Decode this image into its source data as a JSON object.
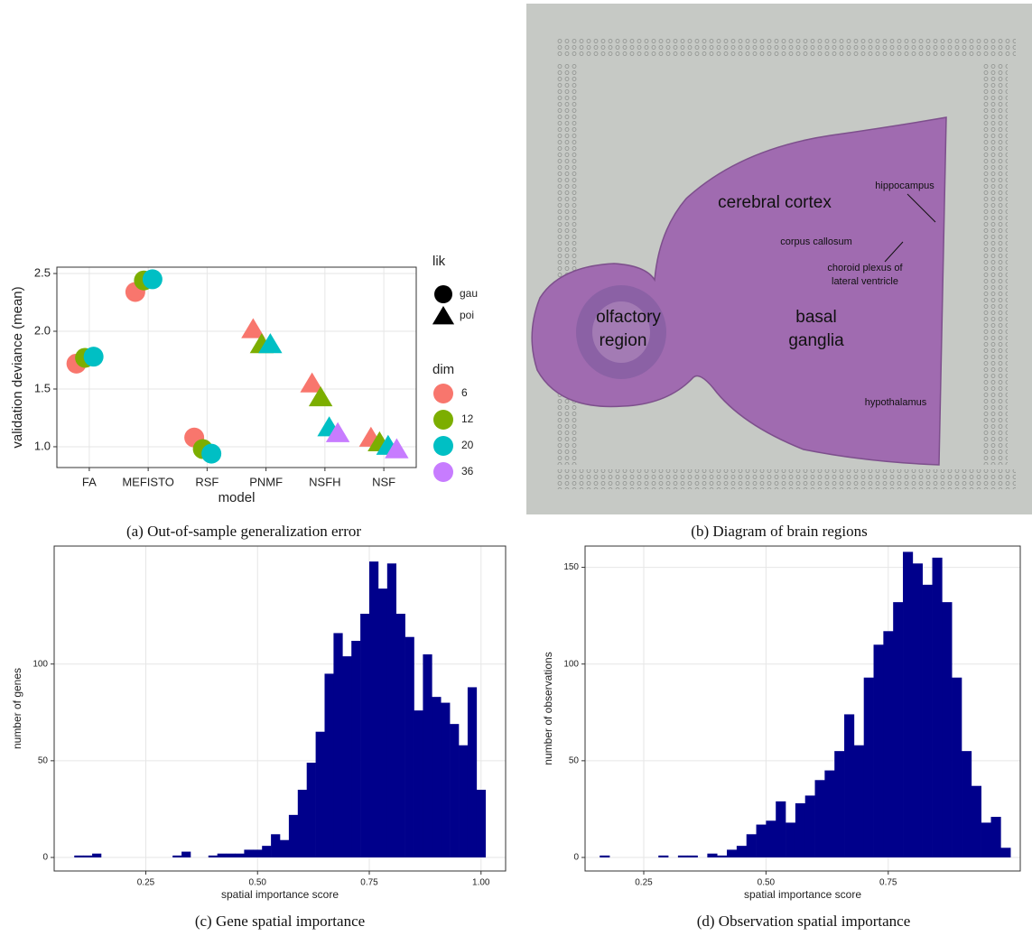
{
  "chart_data": [
    {
      "type": "scatter",
      "caption": "(a) Out-of-sample generalization error",
      "categories": [
        "FA",
        "MEFISTO",
        "RSF",
        "PNMF",
        "NSFH",
        "NSF"
      ],
      "xlabel": "model",
      "ylabel": "validation deviance (mean)",
      "ylim": [
        0.82,
        2.555
      ],
      "yticks": [
        {
          "value": 1,
          "label": "1.0"
        },
        {
          "value": 1.5,
          "label": "1.5"
        },
        {
          "value": 2,
          "label": "2.0"
        },
        {
          "value": 2.5,
          "label": "2.5"
        }
      ],
      "grid": true,
      "legend_shape": {
        "title": "lik",
        "entries": [
          {
            "label": "gau",
            "shape": "circle"
          },
          {
            "label": "poi",
            "shape": "triangle"
          }
        ]
      },
      "legend_color": {
        "title": "dim",
        "entries": [
          {
            "label": "6",
            "color": "#F8766D"
          },
          {
            "label": "12",
            "color": "#7CAE00"
          },
          {
            "label": "20",
            "color": "#00BFC4"
          },
          {
            "label": "36",
            "color": "#C77CFF"
          }
        ]
      },
      "series": [
        {
          "shape": "circle",
          "color": "#F8766D",
          "values": [
            1.72,
            2.34,
            1.08,
            null,
            null,
            null
          ]
        },
        {
          "shape": "circle",
          "color": "#7CAE00",
          "values": [
            1.77,
            2.44,
            0.98,
            null,
            null,
            null
          ]
        },
        {
          "shape": "circle",
          "color": "#00BFC4",
          "values": [
            1.78,
            2.45,
            0.94,
            null,
            null,
            null
          ]
        },
        {
          "shape": "triangle",
          "color": "#F8766D",
          "values": [
            null,
            null,
            null,
            2.02,
            1.55,
            1.08
          ]
        },
        {
          "shape": "triangle",
          "color": "#7CAE00",
          "values": [
            null,
            null,
            null,
            1.89,
            1.43,
            1.04
          ]
        },
        {
          "shape": "triangle",
          "color": "#00BFC4",
          "values": [
            null,
            null,
            null,
            1.89,
            1.17,
            1.01
          ]
        },
        {
          "shape": "triangle",
          "color": "#C77CFF",
          "values": [
            null,
            null,
            null,
            null,
            1.12,
            0.98
          ]
        }
      ]
    },
    {
      "type": "image",
      "caption": "(b) Diagram of brain regions",
      "annotations": [
        "cerebral cortex",
        "hippocampus",
        "corpus callosum",
        "choroid plexus of",
        "lateral ventricle",
        "olfactory",
        "region",
        "basal",
        "ganglia",
        "hypothalamus"
      ]
    },
    {
      "type": "histogram",
      "caption": "(c) Gene spatial importance",
      "xlabel": "spatial importance score",
      "ylabel": "number of genes",
      "color": "#00008B",
      "bins": [
        0.09,
        0.11,
        0.13,
        0.15,
        0.17,
        0.19,
        0.21,
        0.23,
        0.25,
        0.27,
        0.29,
        0.31,
        0.33,
        0.35,
        0.37,
        0.39,
        0.41,
        0.43,
        0.45,
        0.47,
        0.49,
        0.51,
        0.53,
        0.55,
        0.57,
        0.59,
        0.61,
        0.63,
        0.65,
        0.67,
        0.69,
        0.71,
        0.73,
        0.75,
        0.77,
        0.79,
        0.81,
        0.83,
        0.85,
        0.87,
        0.89,
        0.91,
        0.93,
        0.95,
        0.97,
        0.99,
        1.01
      ],
      "values": [
        1,
        1,
        2,
        0,
        0,
        0,
        0,
        0,
        0,
        0,
        0,
        1,
        3,
        0,
        0,
        1,
        2,
        2,
        2,
        4,
        4,
        6,
        12,
        9,
        22,
        35,
        49,
        65,
        95,
        116,
        104,
        112,
        126,
        153,
        139,
        152,
        126,
        114,
        76,
        105,
        83,
        80,
        69,
        58,
        88,
        35
      ],
      "xlim": [
        0.045,
        1.055
      ],
      "ylim": [
        -7,
        161
      ],
      "xticks": [
        0.25,
        {
          "value": 0.5,
          "label": "0.50"
        },
        0.75,
        {
          "value": 1,
          "label": "1.00"
        }
      ],
      "yticks": [
        0,
        50,
        100
      ],
      "grid": true
    },
    {
      "type": "histogram",
      "caption": "(d) Observation spatial importance",
      "xlabel": "spatial importance score",
      "ylabel": "number of observations",
      "color": "#00008B",
      "bins": [
        0.16,
        0.18,
        0.2,
        0.22,
        0.24,
        0.26,
        0.28,
        0.3,
        0.32,
        0.34,
        0.36,
        0.38,
        0.4,
        0.42,
        0.44,
        0.46,
        0.48,
        0.5,
        0.52,
        0.54,
        0.56,
        0.58,
        0.6,
        0.62,
        0.64,
        0.66,
        0.68,
        0.7,
        0.72,
        0.74,
        0.76,
        0.78,
        0.8,
        0.82,
        0.84,
        0.86,
        0.88,
        0.9,
        0.92,
        0.94,
        0.96,
        0.98,
        1.0
      ],
      "values": [
        1,
        0,
        0,
        0,
        0,
        0,
        1,
        0,
        1,
        1,
        0,
        2,
        1,
        4,
        6,
        12,
        17,
        19,
        29,
        18,
        28,
        32,
        40,
        45,
        55,
        74,
        58,
        93,
        110,
        117,
        132,
        158,
        152,
        141,
        155,
        132,
        93,
        55,
        37,
        18,
        21,
        5
      ],
      "xlim": [
        0.13,
        1.02
      ],
      "ylim": [
        -7,
        161
      ],
      "xticks": [
        0.25,
        {
          "value": 0.5,
          "label": "0.50"
        },
        0.75
      ],
      "yticks": [
        0,
        50,
        100,
        150
      ],
      "grid": true
    }
  ]
}
